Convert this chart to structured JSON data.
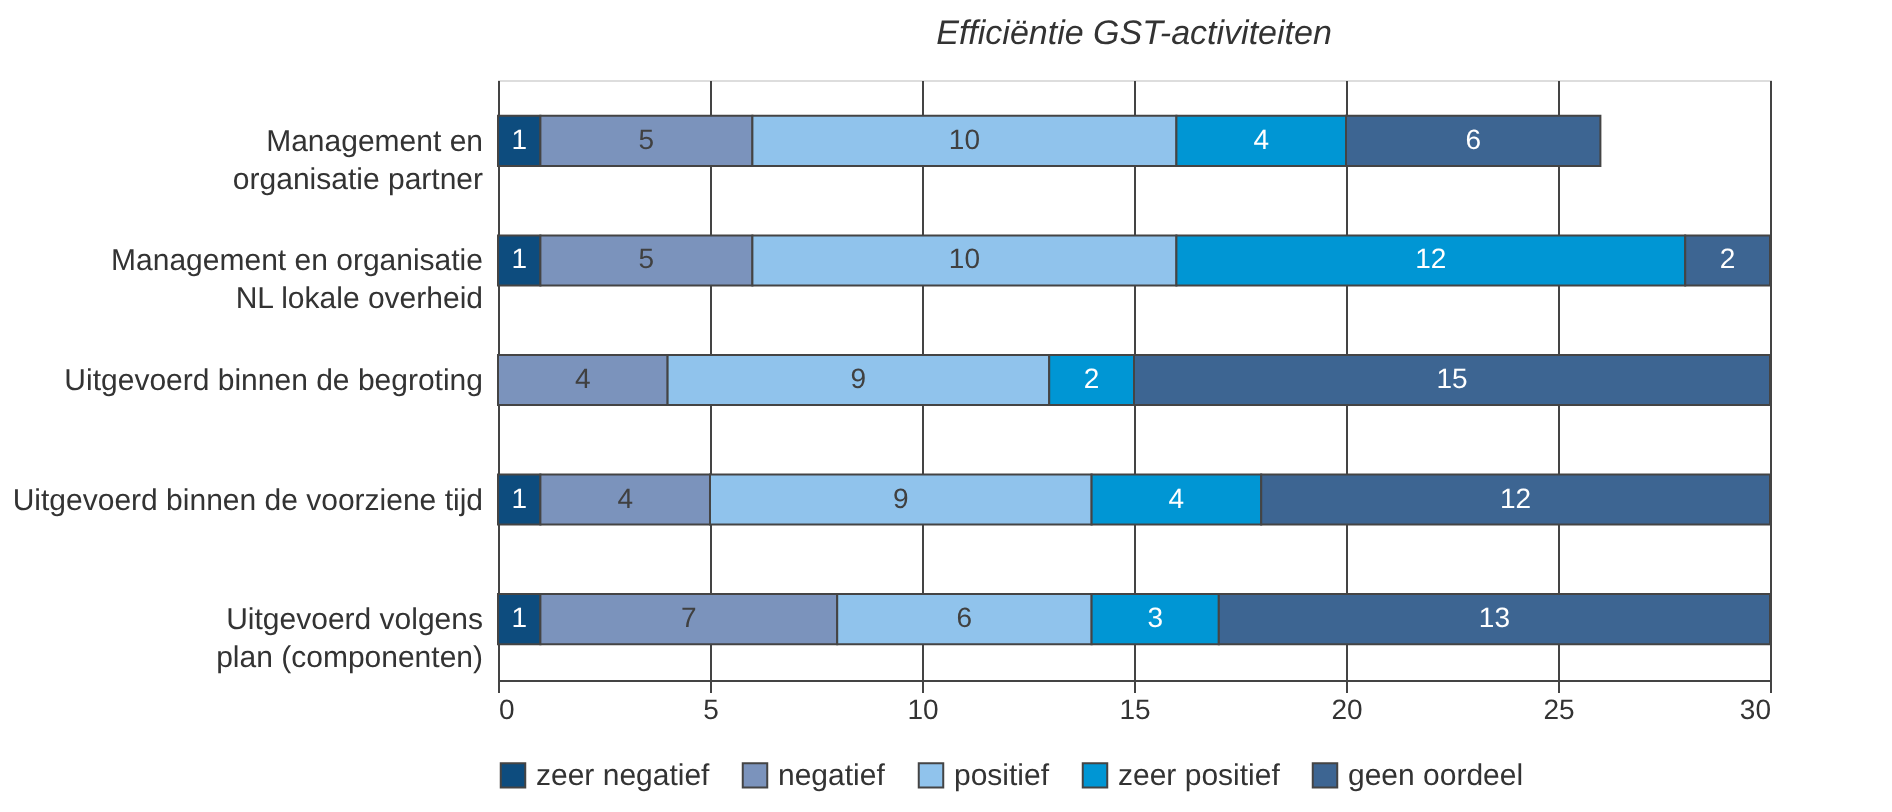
{
  "chart_data": {
    "type": "bar",
    "orientation": "horizontal",
    "stacked": true,
    "title": "Efficiëntie GST-activiteiten",
    "categories": [
      "Management en\norganisatie partner",
      "Management en organisatie\nNL lokale overheid",
      "Uitgevoerd binnen de begroting",
      "Uitgevoerd binnen de voorziene tijd",
      "Uitgevoerd volgens\nplan (componenten)"
    ],
    "series": [
      {
        "name": "zeer negatief",
        "color": "#0d4c7e",
        "values": [
          1,
          1,
          null,
          1,
          1
        ]
      },
      {
        "name": "negatief",
        "color": "#7b93bc",
        "values": [
          5,
          5,
          4,
          4,
          7
        ]
      },
      {
        "name": "positief",
        "color": "#90c3ec",
        "values": [
          10,
          10,
          9,
          9,
          6
        ]
      },
      {
        "name": "zeer positief",
        "color": "#0096d4",
        "values": [
          4,
          12,
          2,
          4,
          3
        ]
      },
      {
        "name": "geen oordeel",
        "color": "#3d6592",
        "values": [
          6,
          2,
          15,
          12,
          13
        ]
      }
    ],
    "xlim": [
      0,
      30
    ],
    "xticks": [
      0,
      5,
      10,
      15,
      20,
      25,
      30
    ],
    "grid": "x",
    "legend": "bottom",
    "data_labels": true
  }
}
